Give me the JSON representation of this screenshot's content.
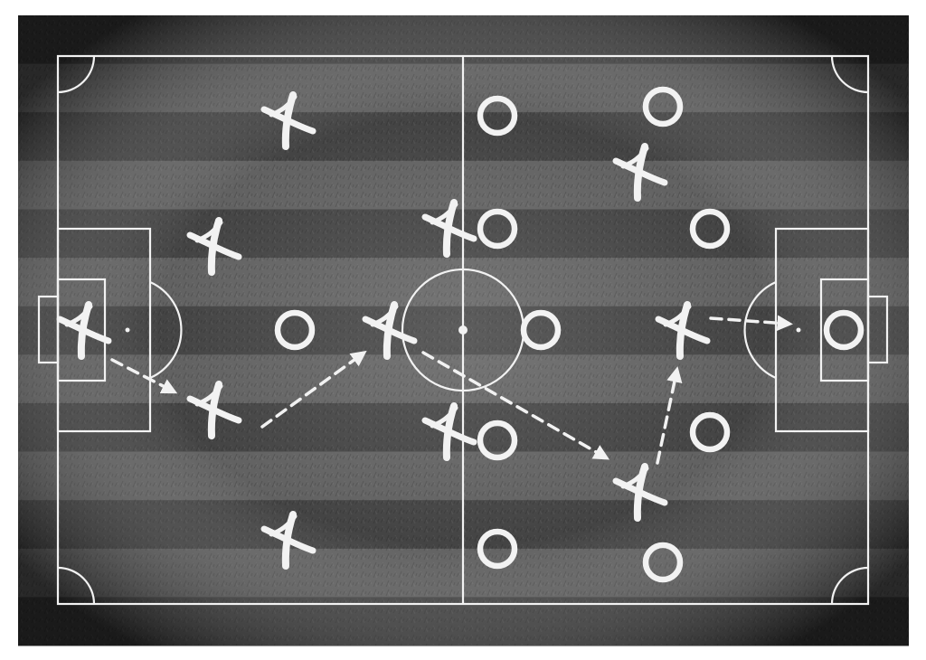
{
  "colors": {
    "page_background": "#ffffff",
    "board_dark": "#141414",
    "stripe_light": "#595959",
    "stripe_dark": "#3a3a3a",
    "chalk": "#f2f2f2"
  },
  "tactic_board": {
    "orientation": "landscape",
    "stripes": 13,
    "team_x": {
      "symbol": "x-mark",
      "players": [
        {
          "role": "goalkeeper"
        },
        {
          "role": "defender"
        },
        {
          "role": "defender"
        },
        {
          "role": "defender"
        },
        {
          "role": "defender"
        },
        {
          "role": "midfielder"
        },
        {
          "role": "midfielder"
        },
        {
          "role": "midfielder"
        },
        {
          "role": "midfielder"
        },
        {
          "role": "forward"
        },
        {
          "role": "forward"
        }
      ]
    },
    "team_o": {
      "symbol": "o-ring",
      "players": [
        {
          "role": "goalkeeper"
        },
        {
          "role": "defender"
        },
        {
          "role": "defender"
        },
        {
          "role": "defender"
        },
        {
          "role": "defender"
        },
        {
          "role": "midfielder"
        },
        {
          "role": "midfielder"
        },
        {
          "role": "midfielder"
        },
        {
          "role": "midfielder"
        },
        {
          "role": "forward"
        },
        {
          "role": "forward"
        }
      ]
    },
    "passing_arrows": 5,
    "arrow_style": "dashed"
  }
}
